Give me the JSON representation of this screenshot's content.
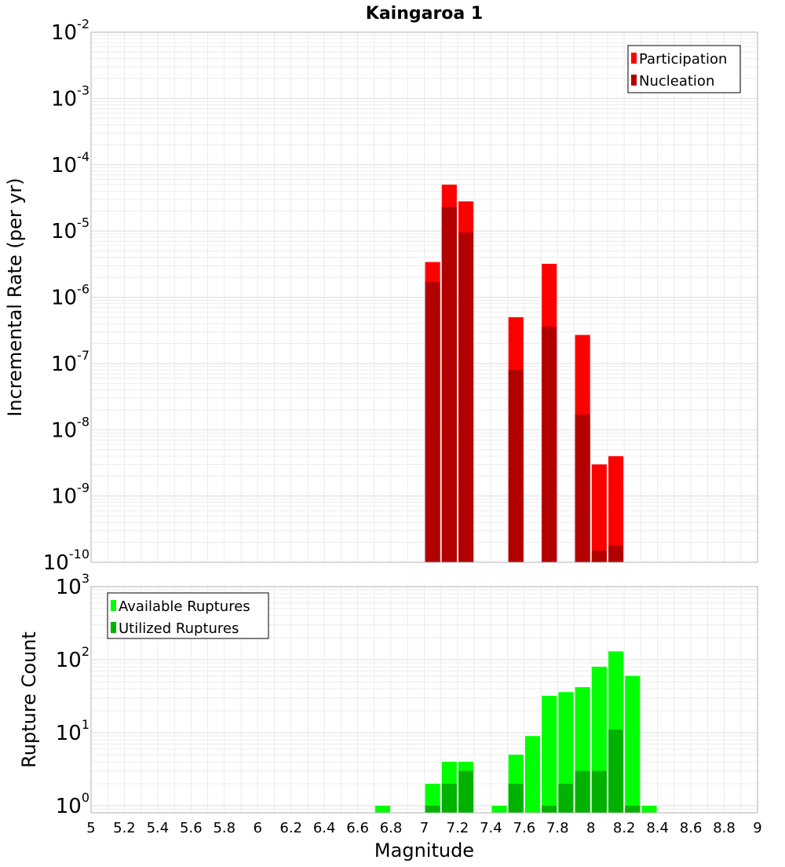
{
  "chart_data": [
    {
      "type": "bar",
      "title": "Kaingaroa 1",
      "xlabel": "",
      "ylabel": "Incremental Rate (per yr)",
      "yscale": "log",
      "ylim": [
        1e-10,
        0.01
      ],
      "xlim": [
        5,
        9
      ],
      "ytick_labels": [
        {
          "base": "10",
          "exp": "-10"
        },
        {
          "base": "10",
          "exp": "-9"
        },
        {
          "base": "10",
          "exp": "-8"
        },
        {
          "base": "10",
          "exp": "-7"
        },
        {
          "base": "10",
          "exp": "-6"
        },
        {
          "base": "10",
          "exp": "-5"
        },
        {
          "base": "10",
          "exp": "-4"
        },
        {
          "base": "10",
          "exp": "-3"
        },
        {
          "base": "10",
          "exp": "-2"
        }
      ],
      "grid": true,
      "legend_position": "top-right",
      "bar_width": 0.09,
      "series": [
        {
          "name": "Participation",
          "color": "#ff0000",
          "x": [
            7.05,
            7.15,
            7.25,
            7.55,
            7.75,
            7.95,
            8.05,
            8.15
          ],
          "values": [
            3.4e-06,
            5e-05,
            2.8e-05,
            5e-07,
            3.2e-06,
            2.7e-07,
            3e-09,
            4e-09
          ]
        },
        {
          "name": "Nucleation",
          "color": "#b20000",
          "x": [
            7.05,
            7.15,
            7.25,
            7.55,
            7.75,
            7.95,
            8.05,
            8.15
          ],
          "values": [
            1.7e-06,
            2.3e-05,
            9.5e-06,
            8e-08,
            3.6e-07,
            1.7e-08,
            1.5e-10,
            1.8e-10
          ]
        }
      ]
    },
    {
      "type": "bar",
      "title": "",
      "xlabel": "Magnitude",
      "ylabel": "Rupture Count",
      "yscale": "log",
      "ylim": [
        0.8,
        1000
      ],
      "xlim": [
        5,
        9
      ],
      "xticks": [
        5,
        5.2,
        5.4,
        5.6,
        5.8,
        6,
        6.2,
        6.4,
        6.6,
        6.8,
        7,
        7.2,
        7.4,
        7.6,
        7.8,
        8,
        8.2,
        8.4,
        8.6,
        8.8,
        9
      ],
      "xtick_labels": [
        "5",
        "5.2",
        "5.4",
        "5.6",
        "5.8",
        "6",
        "6.2",
        "6.4",
        "6.6",
        "6.8",
        "7",
        "7.2",
        "7.4",
        "7.6",
        "7.8",
        "8",
        "8.2",
        "8.4",
        "8.6",
        "8.8",
        "9"
      ],
      "ytick_labels": [
        {
          "base": "10",
          "exp": "0"
        },
        {
          "base": "10",
          "exp": "1"
        },
        {
          "base": "10",
          "exp": "2"
        },
        {
          "base": "10",
          "exp": "3"
        }
      ],
      "grid": true,
      "legend_position": "top-left",
      "bar_width": 0.09,
      "series": [
        {
          "name": "Available Ruptures",
          "color": "#00ff00",
          "x": [
            6.75,
            7.05,
            7.15,
            7.25,
            7.45,
            7.55,
            7.65,
            7.75,
            7.85,
            7.95,
            8.05,
            8.15,
            8.25,
            8.35
          ],
          "values": [
            1,
            2,
            4,
            4,
            1,
            5,
            9,
            32,
            36,
            42,
            80,
            130,
            60,
            1
          ]
        },
        {
          "name": "Utilized Ruptures",
          "color": "#00b200",
          "x": [
            7.05,
            7.15,
            7.25,
            7.55,
            7.75,
            7.85,
            7.95,
            8.05,
            8.15,
            8.25
          ],
          "values": [
            1,
            2,
            3,
            2,
            1,
            2,
            3,
            3,
            11,
            1
          ]
        }
      ]
    }
  ]
}
